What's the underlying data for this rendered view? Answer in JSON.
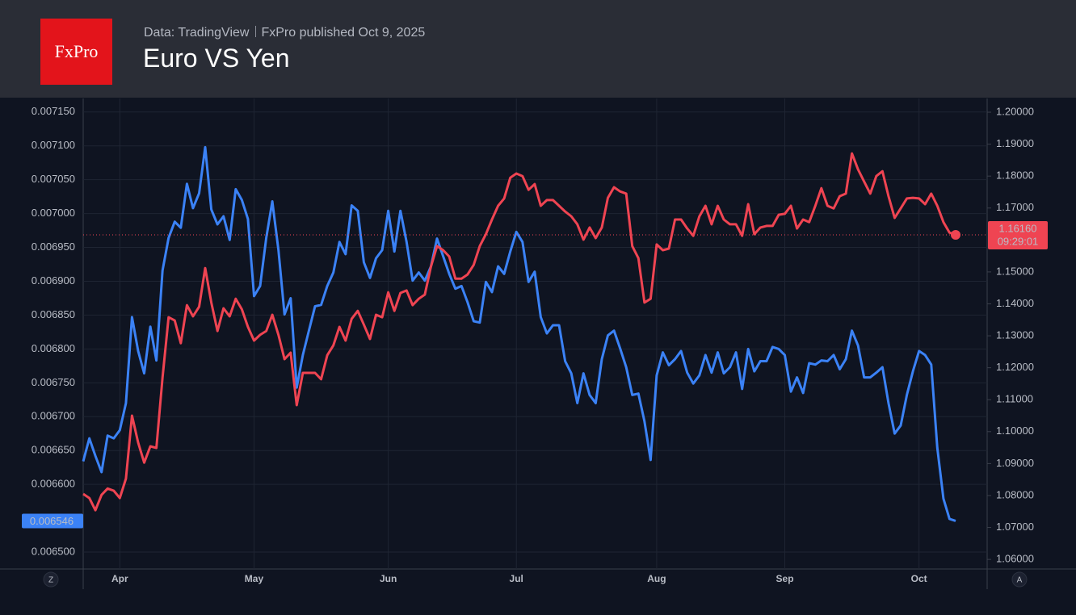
{
  "header": {
    "logo": "FxPro",
    "source": "Data: TradingView",
    "published": "FxPro published Oct 9,  2025"
  },
  "chart_data": {
    "type": "line",
    "title": "Euro VS Yen",
    "categories": [
      null,
      null,
      null,
      null,
      null,
      null,
      "Apr",
      null,
      null,
      null,
      null,
      null,
      null,
      null,
      null,
      null,
      null,
      null,
      null,
      null,
      null,
      null,
      null,
      null,
      null,
      null,
      null,
      null,
      "May",
      null,
      null,
      null,
      null,
      null,
      null,
      null,
      null,
      null,
      null,
      null,
      null,
      null,
      null,
      null,
      null,
      null,
      null,
      null,
      null,
      null,
      "Jun",
      null,
      null,
      null,
      null,
      null,
      null,
      null,
      null,
      null,
      null,
      null,
      null,
      null,
      null,
      null,
      null,
      null,
      null,
      null,
      null,
      "Jul",
      null,
      null,
      null,
      null,
      null,
      null,
      null,
      null,
      null,
      null,
      null,
      null,
      null,
      null,
      null,
      null,
      null,
      null,
      null,
      null,
      null,
      null,
      "Aug",
      null,
      null,
      null,
      null,
      null,
      null,
      null,
      null,
      null,
      null,
      null,
      null,
      null,
      null,
      null,
      null,
      null,
      null,
      null,
      null,
      "Sep",
      null,
      null,
      null,
      null,
      null,
      null,
      null,
      null,
      null,
      null,
      null,
      null,
      null,
      null,
      null,
      null,
      null,
      null,
      null,
      null,
      null,
      "Oct",
      null,
      null,
      null,
      null,
      null,
      null
    ],
    "series": [
      {
        "color": "#3b82f6",
        "axis": "y",
        "price_label": "0.006546",
        "values": [
          0.006634,
          0.006668,
          0.006642,
          0.006618,
          0.006672,
          0.006668,
          0.00668,
          0.00672,
          0.006847,
          0.006797,
          0.006764,
          0.006833,
          0.006783,
          0.006916,
          0.006964,
          0.006988,
          0.006979,
          0.007044,
          0.007008,
          0.00703,
          0.007098,
          0.007006,
          0.006984,
          0.006996,
          0.006961,
          0.007036,
          0.00702,
          0.006992,
          0.006878,
          0.006893,
          0.006964,
          0.007018,
          0.006946,
          0.006851,
          0.006875,
          0.006743,
          0.006791,
          0.006827,
          0.006863,
          0.006865,
          0.006893,
          0.006913,
          0.006958,
          0.00694,
          0.007012,
          0.007004,
          0.006928,
          0.006905,
          0.006934,
          0.006946,
          0.007004,
          0.006944,
          0.007004,
          0.006958,
          0.006901,
          0.006913,
          0.006901,
          0.006922,
          0.006963,
          0.006937,
          0.006911,
          0.006889,
          0.006893,
          0.006869,
          0.006841,
          0.006839,
          0.006899,
          0.006884,
          0.006922,
          0.006911,
          0.006944,
          0.006973,
          0.006958,
          0.006899,
          0.006914,
          0.006847,
          0.006823,
          0.006835,
          0.006835,
          0.006782,
          0.006764,
          0.00672,
          0.006764,
          0.006732,
          0.00672,
          0.006785,
          0.00682,
          0.006827,
          0.006801,
          0.006773,
          0.006732,
          0.006734,
          0.006693,
          0.006636,
          0.006761,
          0.006795,
          0.006776,
          0.006785,
          0.006797,
          0.006765,
          0.006749,
          0.006761,
          0.006791,
          0.006765,
          0.006795,
          0.006764,
          0.006773,
          0.006795,
          0.006741,
          0.0068,
          0.006767,
          0.006782,
          0.006782,
          0.006803,
          0.0068,
          0.006791,
          0.006737,
          0.006758,
          0.006735,
          0.006779,
          0.006777,
          0.006783,
          0.006782,
          0.006791,
          0.00677,
          0.006785,
          0.006827,
          0.006805,
          0.006758,
          0.006758,
          0.006765,
          0.006773,
          0.00672,
          0.006675,
          0.006687,
          0.006732,
          0.006767,
          0.006797,
          0.006791,
          0.006777,
          0.006654,
          0.006579,
          0.006549,
          0.006546
        ]
      },
      {
        "color": "#ef4452",
        "axis": "y2",
        "price_label": "1.16160",
        "countdown": "09:29:01",
        "values": [
          1.0805,
          1.0792,
          1.0754,
          1.0802,
          1.0822,
          1.0815,
          1.0792,
          1.0853,
          1.105,
          1.0966,
          1.0903,
          1.0954,
          1.0949,
          1.1169,
          1.1358,
          1.1348,
          1.1277,
          1.1396,
          1.1361,
          1.1391,
          1.1512,
          1.1404,
          1.1315,
          1.1386,
          1.1361,
          1.1416,
          1.1383,
          1.1328,
          1.1285,
          1.1303,
          1.1315,
          1.1366,
          1.1303,
          1.1227,
          1.1247,
          1.1083,
          1.1184,
          1.1184,
          1.1184,
          1.1164,
          1.1239,
          1.127,
          1.1328,
          1.1285,
          1.1353,
          1.1378,
          1.1335,
          1.129,
          1.1366,
          1.1358,
          1.1436,
          1.1378,
          1.1434,
          1.1442,
          1.1396,
          1.1416,
          1.1429,
          1.1517,
          1.1581,
          1.1568,
          1.1548,
          1.1479,
          1.1479,
          1.1492,
          1.1522,
          1.1581,
          1.1618,
          1.1664,
          1.1707,
          1.173,
          1.1795,
          1.1808,
          1.18,
          1.1757,
          1.1775,
          1.1707,
          1.1725,
          1.1725,
          1.1707,
          1.1689,
          1.1674,
          1.1649,
          1.1601,
          1.1639,
          1.1606,
          1.1639,
          1.1732,
          1.1765,
          1.1752,
          1.1745,
          1.1581,
          1.1543,
          1.1404,
          1.1416,
          1.1586,
          1.1568,
          1.1573,
          1.1664,
          1.1664,
          1.1636,
          1.1613,
          1.1674,
          1.1707,
          1.1649,
          1.1707,
          1.1664,
          1.1649,
          1.1649,
          1.1613,
          1.1712,
          1.1618,
          1.1639,
          1.1644,
          1.1644,
          1.1679,
          1.1682,
          1.1707,
          1.1636,
          1.1664,
          1.1656,
          1.1707,
          1.1762,
          1.1707,
          1.1699,
          1.1737,
          1.1745,
          1.1871,
          1.1821,
          1.1783,
          1.1745,
          1.18,
          1.1815,
          1.1737,
          1.1669,
          1.1699,
          1.173,
          1.1732,
          1.173,
          1.1712,
          1.1745,
          1.1707,
          1.1656,
          1.1623,
          1.1616
        ]
      }
    ],
    "ylim": [
      0.006475,
      0.00717
    ],
    "yticks": [
      {
        "value": 0.0065,
        "label": "0.006500"
      },
      {
        "value": 0.0066,
        "label": "0.006600"
      },
      {
        "value": 0.00665,
        "label": "0.006650"
      },
      {
        "value": 0.0067,
        "label": "0.006700"
      },
      {
        "value": 0.00675,
        "label": "0.006750"
      },
      {
        "value": 0.0068,
        "label": "0.006800"
      },
      {
        "value": 0.00685,
        "label": "0.006850"
      },
      {
        "value": 0.0069,
        "label": "0.006900"
      },
      {
        "value": 0.00695,
        "label": "0.006950"
      },
      {
        "value": 0.007,
        "label": "0.007000"
      },
      {
        "value": 0.00705,
        "label": "0.007050"
      },
      {
        "value": 0.0071,
        "label": "0.007100"
      },
      {
        "value": 0.00715,
        "label": "0.007150"
      }
    ],
    "y2lim": [
      1.057,
      1.2043
    ],
    "y2ticks": [
      {
        "value": 1.06,
        "label": "1.06000"
      },
      {
        "value": 1.07,
        "label": "1.07000"
      },
      {
        "value": 1.08,
        "label": "1.08000"
      },
      {
        "value": 1.09,
        "label": "1.09000"
      },
      {
        "value": 1.1,
        "label": "1.10000"
      },
      {
        "value": 1.11,
        "label": "1.11000"
      },
      {
        "value": 1.12,
        "label": "1.12000"
      },
      {
        "value": 1.13,
        "label": "1.13000"
      },
      {
        "value": 1.14,
        "label": "1.14000"
      },
      {
        "value": 1.15,
        "label": "1.15000"
      },
      {
        "value": 1.17,
        "label": "1.17000"
      },
      {
        "value": 1.18,
        "label": "1.18000"
      },
      {
        "value": 1.19,
        "label": "1.19000"
      },
      {
        "value": 1.2,
        "label": "1.20000"
      }
    ],
    "grid": true,
    "axis_buttons": [
      "Z",
      "A"
    ]
  }
}
